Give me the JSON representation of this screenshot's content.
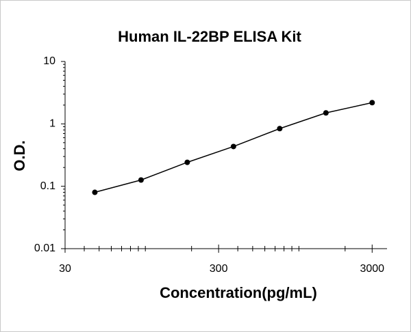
{
  "chart_data": {
    "type": "scatter",
    "title": "Human IL-22BP ELISA Kit",
    "x_label": "Concentration(pg/mL)",
    "y_label": "O.D.",
    "x": [
      46.875,
      93.75,
      187.5,
      375,
      750,
      1500,
      3000
    ],
    "series": [
      {
        "name": "O.D.",
        "color": "#000000",
        "values": [
          0.08,
          0.126,
          0.242,
          0.434,
          0.84,
          1.5,
          2.19
        ]
      }
    ],
    "xscale": "log",
    "yscale": "log",
    "xlim": [
      30,
      3750
    ],
    "ylim": [
      0.01,
      10
    ],
    "xticks": [
      30,
      300,
      3000
    ],
    "yticks": [
      0.01,
      0.1,
      1,
      10
    ],
    "xminorticks": [
      40,
      50,
      60,
      70,
      80,
      90,
      100,
      200,
      400,
      500,
      600,
      700,
      800,
      900,
      1000,
      2000
    ],
    "yminorticks": [
      0.02,
      0.03,
      0.04,
      0.05,
      0.06,
      0.07,
      0.08,
      0.09,
      0.2,
      0.3,
      0.4,
      0.5,
      0.6,
      0.7,
      0.8,
      0.9,
      2,
      3,
      4,
      5,
      6,
      7,
      8,
      9
    ],
    "grid": false
  }
}
